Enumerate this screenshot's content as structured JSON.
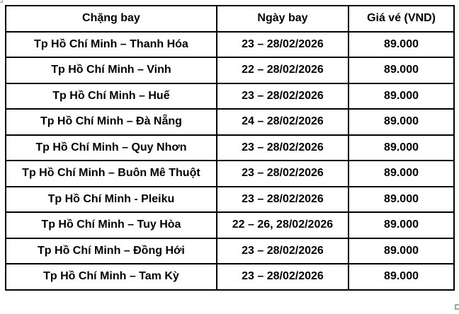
{
  "colors": {
    "border": "#000000",
    "text": "#000000",
    "background": "#ffffff",
    "handle": "#a6a6a6"
  },
  "table": {
    "columns": [
      {
        "key": "route",
        "label": "Chặng bay"
      },
      {
        "key": "date",
        "label": "Ngày bay"
      },
      {
        "key": "price",
        "label": "Giá vé (VND)"
      }
    ],
    "rows": [
      {
        "route": "Tp Hồ Chí Minh – Thanh Hóa",
        "date": "23 – 28/02/2026",
        "price": "89.000"
      },
      {
        "route": "Tp Hồ Chí Minh – Vinh",
        "date": "22 – 28/02/2026",
        "price": "89.000"
      },
      {
        "route": "Tp Hồ Chí Minh – Huế",
        "date": "23 – 28/02/2026",
        "price": "89.000"
      },
      {
        "route": "Tp Hồ Chí Minh – Đà Nẵng",
        "date": "24 – 28/02/2026",
        "price": "89.000"
      },
      {
        "route": "Tp Hồ Chí Minh – Quy Nhơn",
        "date": "23 – 28/02/2026",
        "price": "89.000"
      },
      {
        "route": "Tp Hồ Chí Minh – Buôn Mê Thuột",
        "date": "23 – 28/02/2026",
        "price": "89.000"
      },
      {
        "route": "Tp Hồ Chí Minh - Pleiku",
        "date": "23 – 28/02/2026",
        "price": "89.000"
      },
      {
        "route": "Tp Hồ Chí Minh – Tuy Hòa",
        "date": "22 – 26, 28/02/2026",
        "price": "89.000"
      },
      {
        "route": "Tp Hồ Chí Minh – Đồng Hới",
        "date": "23 – 28/02/2026",
        "price": "89.000"
      },
      {
        "route": "Tp Hồ Chí Minh – Tam Kỳ",
        "date": "23 – 28/02/2026",
        "price": "89.000"
      }
    ]
  },
  "chart_data": {
    "type": "table",
    "columns": [
      "Chặng bay",
      "Ngày bay",
      "Giá vé (VND)"
    ],
    "rows": [
      [
        "Tp Hồ Chí Minh – Thanh Hóa",
        "23 – 28/02/2026",
        "89.000"
      ],
      [
        "Tp Hồ Chí Minh – Vinh",
        "22 – 28/02/2026",
        "89.000"
      ],
      [
        "Tp Hồ Chí Minh – Huế",
        "23 – 28/02/2026",
        "89.000"
      ],
      [
        "Tp Hồ Chí Minh – Đà Nẵng",
        "24 – 28/02/2026",
        "89.000"
      ],
      [
        "Tp Hồ Chí Minh – Quy Nhơn",
        "23 – 28/02/2026",
        "89.000"
      ],
      [
        "Tp Hồ Chí Minh – Buôn Mê Thuột",
        "23 – 28/02/2026",
        "89.000"
      ],
      [
        "Tp Hồ Chí Minh - Pleiku",
        "23 – 28/02/2026",
        "89.000"
      ],
      [
        "Tp Hồ Chí Minh – Tuy Hòa",
        "22 – 26, 28/02/2026",
        "89.000"
      ],
      [
        "Tp Hồ Chí Minh – Đồng Hới",
        "23 – 28/02/2026",
        "89.000"
      ],
      [
        "Tp Hồ Chí Minh – Tam Kỳ",
        "23 – 28/02/2026",
        "89.000"
      ]
    ]
  }
}
